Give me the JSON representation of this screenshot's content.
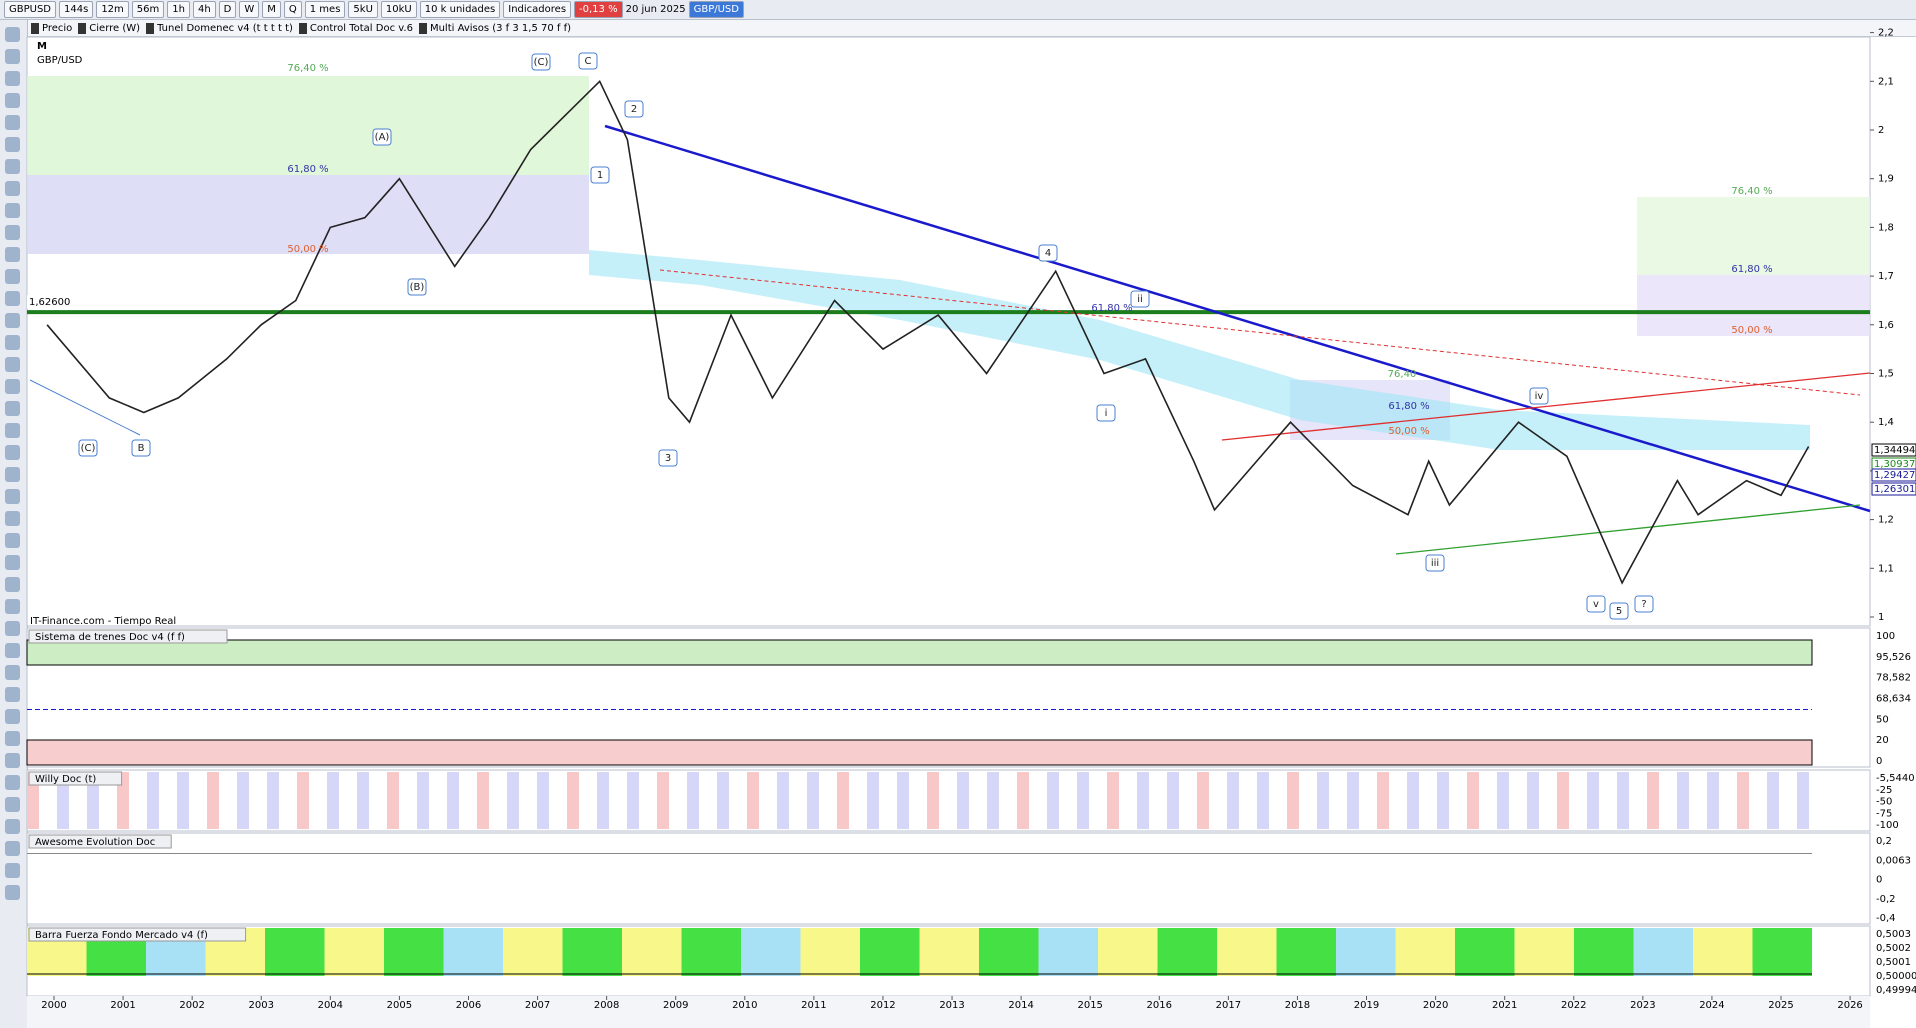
{
  "toolbar": {
    "items": [
      "GBPUSD",
      "144s",
      "12m",
      "56m",
      "1h",
      "4h",
      "D",
      "W",
      "M",
      "Q",
      "1 mes",
      "5kU",
      "10kU",
      "10 k unidades",
      "Indicadores"
    ],
    "change": "-0,13 %",
    "date": "20 jun 2025",
    "symbol_tag": "GBP/USD"
  },
  "indicator_bar": [
    "Precio",
    "Cierre (W)",
    "Tunel Domenec v4 (t t t t t)",
    "Control Total Doc v.6",
    "Multi Avisos (3 f 3 1,5 70 f f)"
  ],
  "chart": {
    "period": "M",
    "symbol": "GBP/USD",
    "source": "IT-Finance.com - Tiempo Real",
    "price_axis": [
      {
        "value": 2.2,
        "label": "2,2"
      },
      {
        "value": 2.1,
        "label": "2,1"
      },
      2,
      {
        "value": 1.9,
        "label": "1,9"
      },
      {
        "value": 1.8,
        "label": "1,8"
      },
      {
        "value": 1.7,
        "label": "1,7"
      },
      {
        "value": 1.6,
        "label": "1,6"
      },
      {
        "value": 1.5,
        "label": "1,5"
      },
      {
        "value": 1.4,
        "label": "1,4"
      },
      {
        "value": 1.3,
        "label": "1,3"
      },
      {
        "value": 1.2,
        "label": "1,2"
      },
      {
        "value": 1.1,
        "label": "1,1"
      },
      1
    ],
    "support": {
      "value": 1.626,
      "label": "1,62600"
    },
    "price_tags": [
      "1,34494",
      "1,30937",
      "1,29427",
      "1,26301"
    ],
    "fib_labels": [
      "76,40 %",
      "61,80 %",
      "50,00 %",
      "76,40 %",
      "61,80 %",
      "50,00 %",
      "76,40",
      "61,80 %",
      "50,00 %",
      "61,80 %"
    ],
    "wave_labels": [
      "(C)",
      "C",
      "(A)",
      "(B)",
      "2",
      "1",
      "3",
      "4",
      "ii",
      "i",
      "iii",
      "iv",
      "v",
      "5",
      "?",
      "(C)",
      "B"
    ],
    "price": {
      "x": [
        1999.9,
        2000.8,
        2001.3,
        2001.8,
        2002.5,
        2003,
        2003.5,
        2004,
        2004.5,
        2005,
        2005.8,
        2006.3,
        2006.9,
        2007.9,
        2008.3,
        2008.9,
        2009.2,
        2009.8,
        2010.4,
        2011.3,
        2012,
        2012.8,
        2013.5,
        2014.5,
        2015.2,
        2015.8,
        2016.5,
        2016.8,
        2017.9,
        2018.8,
        2019.6,
        2019.9,
        2020.2,
        2021.2,
        2021.9,
        2022.7,
        2023.5,
        2023.8,
        2024.5,
        2025,
        2025.4
      ],
      "values": [
        1.6,
        1.45,
        1.42,
        1.45,
        1.53,
        1.6,
        1.65,
        1.8,
        1.82,
        1.9,
        1.72,
        1.82,
        1.96,
        2.1,
        1.98,
        1.45,
        1.4,
        1.62,
        1.45,
        1.65,
        1.55,
        1.62,
        1.5,
        1.71,
        1.5,
        1.53,
        1.32,
        1.22,
        1.4,
        1.27,
        1.21,
        1.32,
        1.23,
        1.4,
        1.33,
        1.07,
        1.28,
        1.21,
        1.28,
        1.25,
        1.35
      ]
    }
  },
  "panels": [
    {
      "title": "Sistema de trenes Doc v4 (f f)",
      "axis": [
        "100",
        "95,526",
        "78,582",
        "68,634",
        "50",
        "20",
        "0"
      ]
    },
    {
      "title": "Willy Doc (t)",
      "axis": [
        "-5,5440",
        "-25",
        "-50",
        "-75",
        "-100"
      ]
    },
    {
      "title": "Awesome Evolution Doc",
      "axis": [
        "0,2",
        "0,0063",
        "0",
        "-0,2",
        "-0,4"
      ]
    },
    {
      "title": "Barra Fuerza Fondo Mercado v4 (f)",
      "axis": [
        "0,5003",
        "0,5002",
        "0,5001",
        "0,50000",
        "0,49994"
      ]
    }
  ],
  "years": [
    2000,
    2001,
    2002,
    2003,
    2004,
    2005,
    2006,
    2007,
    2008,
    2009,
    2010,
    2011,
    2012,
    2013,
    2014,
    2015,
    2016,
    2017,
    2018,
    2019,
    2020,
    2021,
    2022,
    2023,
    2024,
    2025,
    2026
  ]
}
